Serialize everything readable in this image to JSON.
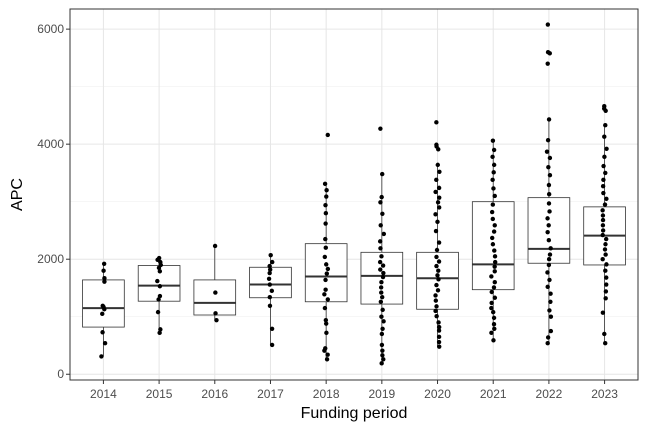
{
  "chart_data": {
    "type": "boxplot",
    "xlabel": "Funding period",
    "ylabel": "APC",
    "ylim": [
      -100,
      6350
    ],
    "yticks": [
      0,
      2000,
      4000,
      6000
    ],
    "grid": true,
    "categories": [
      "2014",
      "2015",
      "2016",
      "2017",
      "2018",
      "2019",
      "2020",
      "2021",
      "2022",
      "2023"
    ],
    "boxes": [
      {
        "category": "2014",
        "min": 310,
        "q1": 820,
        "median": 1150,
        "q3": 1640,
        "max": 1920
      },
      {
        "category": "2015",
        "min": 720,
        "q1": 1270,
        "median": 1540,
        "q3": 1890,
        "max": 2020
      },
      {
        "category": "2016",
        "min": 940,
        "q1": 1030,
        "median": 1240,
        "q3": 1640,
        "max": 2230
      },
      {
        "category": "2017",
        "min": 510,
        "q1": 1330,
        "median": 1560,
        "q3": 1860,
        "max": 2070
      },
      {
        "category": "2018",
        "min": 260,
        "q1": 1260,
        "median": 1700,
        "q3": 2270,
        "max": 3310
      },
      {
        "category": "2019",
        "min": 190,
        "q1": 1220,
        "median": 1710,
        "q3": 2120,
        "max": 3480
      },
      {
        "category": "2020",
        "min": 480,
        "q1": 1130,
        "median": 1670,
        "q3": 2120,
        "max": 3640
      },
      {
        "category": "2021",
        "min": 590,
        "q1": 1470,
        "median": 1910,
        "q3": 3000,
        "max": 4060
      },
      {
        "category": "2022",
        "min": 540,
        "q1": 1930,
        "median": 2180,
        "q3": 3070,
        "max": 4430
      },
      {
        "category": "2023",
        "min": 540,
        "q1": 1900,
        "median": 2410,
        "q3": 2910,
        "max": 4330
      }
    ],
    "points": [
      {
        "category": "2014",
        "values": [
          310,
          540,
          730,
          1050,
          1130,
          1170,
          1190,
          1610,
          1670,
          1800,
          1920
        ]
      },
      {
        "category": "2015",
        "values": [
          720,
          780,
          1080,
          1300,
          1360,
          1530,
          1620,
          1790,
          1850,
          1900,
          1950,
          1990,
          2020
        ]
      },
      {
        "category": "2016",
        "values": [
          940,
          1060,
          1420,
          2230
        ]
      },
      {
        "category": "2017",
        "values": [
          510,
          790,
          1190,
          1340,
          1450,
          1560,
          1660,
          1760,
          1820,
          1880,
          1950,
          2070
        ]
      },
      {
        "category": "2018",
        "values": [
          260,
          340,
          410,
          450,
          720,
          880,
          940,
          1150,
          1300,
          1390,
          1470,
          1640,
          1750,
          1830,
          1910,
          2040,
          2200,
          2350,
          2620,
          2800,
          2940,
          3090,
          3200,
          3310,
          4160
        ]
      },
      {
        "category": "2019",
        "values": [
          190,
          260,
          330,
          410,
          510,
          700,
          790,
          920,
          1000,
          1120,
          1260,
          1340,
          1420,
          1510,
          1600,
          1690,
          1760,
          1820,
          1890,
          1950,
          2050,
          2190,
          2310,
          2440,
          2590,
          2790,
          2990,
          3080,
          3480,
          4270
        ]
      },
      {
        "category": "2020",
        "values": [
          480,
          560,
          650,
          760,
          820,
          900,
          1010,
          1100,
          1180,
          1280,
          1370,
          1460,
          1550,
          1650,
          1720,
          1800,
          1880,
          1960,
          2040,
          2160,
          2290,
          2490,
          2650,
          2780,
          2900,
          2990,
          3070,
          3170,
          3240,
          3380,
          3520,
          3640,
          3910,
          3960,
          3990,
          4380
        ]
      },
      {
        "category": "2021",
        "values": [
          590,
          720,
          790,
          870,
          980,
          1080,
          1150,
          1240,
          1330,
          1430,
          1510,
          1600,
          1700,
          1790,
          1870,
          1950,
          2050,
          2150,
          2260,
          2370,
          2480,
          2590,
          2700,
          2820,
          2950,
          3100,
          3230,
          3380,
          3510,
          3640,
          3780,
          3900,
          4060
        ]
      },
      {
        "category": "2022",
        "values": [
          540,
          640,
          750,
          1000,
          1110,
          1260,
          1400,
          1520,
          1640,
          1770,
          1900,
          2000,
          2080,
          2190,
          2330,
          2470,
          2590,
          2710,
          2830,
          2970,
          3130,
          3290,
          3460,
          3600,
          3760,
          3870,
          4070,
          4430,
          5400,
          5580,
          5600,
          6080
        ]
      },
      {
        "category": "2023",
        "values": [
          540,
          700,
          1070,
          1320,
          1440,
          1560,
          1680,
          1800,
          1910,
          2000,
          2080,
          2170,
          2260,
          2350,
          2420,
          2500,
          2590,
          2680,
          2760,
          2850,
          2950,
          3050,
          3150,
          3270,
          3380,
          3500,
          3620,
          3780,
          3920,
          4130,
          4330,
          4580,
          4620,
          4660
        ]
      }
    ]
  }
}
